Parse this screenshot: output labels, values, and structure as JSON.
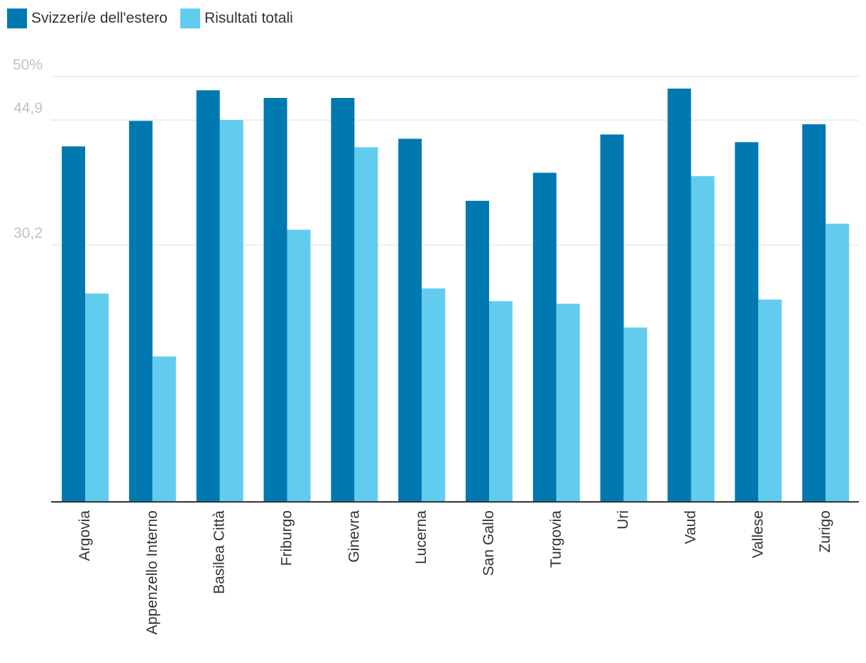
{
  "chart_data": {
    "type": "bar",
    "title": "",
    "xlabel": "",
    "ylabel": "",
    "ylim": [
      0,
      50
    ],
    "y_ticks": [
      {
        "value": 50,
        "label": "50%"
      },
      {
        "value": 44.9,
        "label": "44,9"
      },
      {
        "value": 30.2,
        "label": "30,2"
      }
    ],
    "categories": [
      "Argovia",
      "Appenzello Interno",
      "Basilea Città",
      "Friburgo",
      "Ginevra",
      "Lucerna",
      "San Gallo",
      "Turgovia",
      "Uri",
      "Vaud",
      "Vallese",
      "Zurigo"
    ],
    "series": [
      {
        "name": "Svizzeri/e dell'estero",
        "color": "#0079b0",
        "values": [
          41.8,
          44.8,
          48.4,
          47.5,
          47.5,
          42.7,
          35.4,
          38.7,
          43.2,
          48.6,
          42.3,
          44.4
        ]
      },
      {
        "name": "Risultati totali",
        "color": "#62ccef",
        "values": [
          24.5,
          17.1,
          44.9,
          32.0,
          41.7,
          25.1,
          23.6,
          23.3,
          20.5,
          38.3,
          23.8,
          32.7
        ]
      }
    ],
    "legend_position": "top-left",
    "grid": true
  }
}
